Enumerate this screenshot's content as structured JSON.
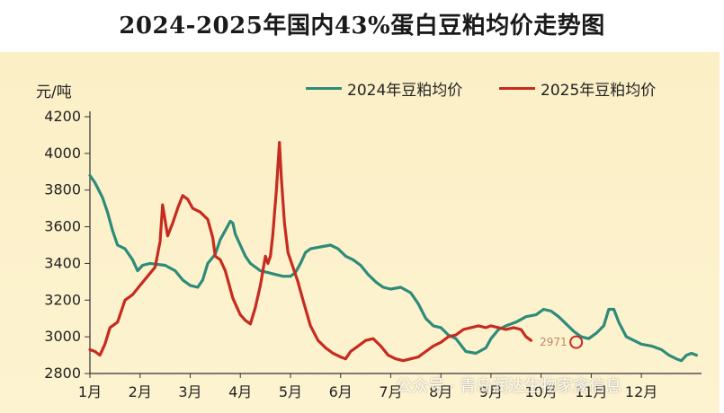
{
  "chart_data": {
    "type": "line",
    "title": "2024-2025年国内43%蛋白豆粕均价走势图",
    "ylabel": "元/吨",
    "ylim": [
      2800,
      4200
    ],
    "yticks": [
      2800,
      3000,
      3200,
      3400,
      3600,
      3800,
      4000,
      4200
    ],
    "xticks": [
      "1月",
      "2月",
      "3月",
      "4月",
      "5月",
      "6月",
      "7月",
      "8月",
      "9月",
      "10月",
      "11月",
      "12月"
    ],
    "grid": false,
    "legend": "top-right",
    "colors": {
      "s2024": "#2e8b7a",
      "s2025": "#c62b1f"
    },
    "annotation": {
      "text": "2971",
      "month": 10.7,
      "value": 2971
    },
    "series": [
      {
        "name": "2024年豆粕均价",
        "points": [
          [
            1.0,
            3880
          ],
          [
            1.1,
            3840
          ],
          [
            1.25,
            3760
          ],
          [
            1.35,
            3680
          ],
          [
            1.45,
            3580
          ],
          [
            1.55,
            3500
          ],
          [
            1.7,
            3480
          ],
          [
            1.85,
            3420
          ],
          [
            1.95,
            3360
          ],
          [
            2.05,
            3390
          ],
          [
            2.2,
            3400
          ],
          [
            2.5,
            3390
          ],
          [
            2.7,
            3360
          ],
          [
            2.85,
            3310
          ],
          [
            3.0,
            3280
          ],
          [
            3.15,
            3270
          ],
          [
            3.25,
            3310
          ],
          [
            3.35,
            3400
          ],
          [
            3.5,
            3450
          ],
          [
            3.6,
            3530
          ],
          [
            3.7,
            3580
          ],
          [
            3.8,
            3630
          ],
          [
            3.85,
            3620
          ],
          [
            3.9,
            3560
          ],
          [
            4.0,
            3500
          ],
          [
            4.1,
            3440
          ],
          [
            4.2,
            3400
          ],
          [
            4.4,
            3360
          ],
          [
            4.55,
            3350
          ],
          [
            4.7,
            3340
          ],
          [
            4.85,
            3330
          ],
          [
            5.0,
            3330
          ],
          [
            5.1,
            3350
          ],
          [
            5.2,
            3400
          ],
          [
            5.3,
            3460
          ],
          [
            5.4,
            3480
          ],
          [
            5.6,
            3490
          ],
          [
            5.8,
            3500
          ],
          [
            5.95,
            3480
          ],
          [
            6.1,
            3440
          ],
          [
            6.25,
            3420
          ],
          [
            6.4,
            3390
          ],
          [
            6.55,
            3340
          ],
          [
            6.7,
            3300
          ],
          [
            6.85,
            3270
          ],
          [
            7.0,
            3260
          ],
          [
            7.2,
            3270
          ],
          [
            7.4,
            3240
          ],
          [
            7.55,
            3180
          ],
          [
            7.7,
            3100
          ],
          [
            7.85,
            3060
          ],
          [
            8.0,
            3050
          ],
          [
            8.15,
            3010
          ],
          [
            8.3,
            2990
          ],
          [
            8.5,
            2920
          ],
          [
            8.7,
            2910
          ],
          [
            8.9,
            2940
          ],
          [
            9.0,
            2990
          ],
          [
            9.15,
            3040
          ],
          [
            9.3,
            3060
          ],
          [
            9.5,
            3080
          ],
          [
            9.7,
            3110
          ],
          [
            9.9,
            3120
          ],
          [
            10.05,
            3150
          ],
          [
            10.2,
            3140
          ],
          [
            10.35,
            3110
          ],
          [
            10.5,
            3070
          ],
          [
            10.65,
            3030
          ],
          [
            10.8,
            3000
          ],
          [
            10.95,
            2990
          ],
          [
            11.1,
            3020
          ],
          [
            11.25,
            3060
          ],
          [
            11.35,
            3150
          ],
          [
            11.45,
            3150
          ],
          [
            11.55,
            3080
          ],
          [
            11.7,
            3000
          ],
          [
            11.85,
            2980
          ],
          [
            12.0,
            2960
          ],
          [
            12.2,
            2950
          ],
          [
            12.4,
            2930
          ],
          [
            12.55,
            2900
          ],
          [
            12.7,
            2880
          ],
          [
            12.8,
            2870
          ],
          [
            12.9,
            2900
          ],
          [
            13.0,
            2910
          ],
          [
            13.1,
            2900
          ]
        ]
      },
      {
        "name": "2025年豆粕均价",
        "points": [
          [
            1.0,
            2930
          ],
          [
            1.1,
            2920
          ],
          [
            1.2,
            2900
          ],
          [
            1.3,
            2960
          ],
          [
            1.4,
            3050
          ],
          [
            1.55,
            3080
          ],
          [
            1.7,
            3200
          ],
          [
            1.85,
            3230
          ],
          [
            2.0,
            3280
          ],
          [
            2.15,
            3330
          ],
          [
            2.3,
            3380
          ],
          [
            2.4,
            3520
          ],
          [
            2.45,
            3720
          ],
          [
            2.55,
            3550
          ],
          [
            2.65,
            3620
          ],
          [
            2.75,
            3700
          ],
          [
            2.85,
            3770
          ],
          [
            2.95,
            3750
          ],
          [
            3.05,
            3700
          ],
          [
            3.2,
            3680
          ],
          [
            3.35,
            3640
          ],
          [
            3.45,
            3540
          ],
          [
            3.5,
            3440
          ],
          [
            3.6,
            3420
          ],
          [
            3.7,
            3360
          ],
          [
            3.85,
            3210
          ],
          [
            4.0,
            3120
          ],
          [
            4.1,
            3090
          ],
          [
            4.2,
            3070
          ],
          [
            4.3,
            3160
          ],
          [
            4.4,
            3280
          ],
          [
            4.5,
            3440
          ],
          [
            4.55,
            3400
          ],
          [
            4.6,
            3440
          ],
          [
            4.65,
            3560
          ],
          [
            4.72,
            3800
          ],
          [
            4.78,
            4060
          ],
          [
            4.82,
            3860
          ],
          [
            4.88,
            3620
          ],
          [
            4.95,
            3460
          ],
          [
            5.05,
            3380
          ],
          [
            5.15,
            3300
          ],
          [
            5.25,
            3200
          ],
          [
            5.4,
            3060
          ],
          [
            5.55,
            2980
          ],
          [
            5.7,
            2940
          ],
          [
            5.85,
            2910
          ],
          [
            6.0,
            2890
          ],
          [
            6.1,
            2880
          ],
          [
            6.2,
            2920
          ],
          [
            6.35,
            2950
          ],
          [
            6.5,
            2980
          ],
          [
            6.65,
            2990
          ],
          [
            6.8,
            2950
          ],
          [
            6.95,
            2900
          ],
          [
            7.1,
            2880
          ],
          [
            7.25,
            2870
          ],
          [
            7.4,
            2880
          ],
          [
            7.55,
            2890
          ],
          [
            7.7,
            2920
          ],
          [
            7.85,
            2950
          ],
          [
            8.0,
            2970
          ],
          [
            8.15,
            3000
          ],
          [
            8.3,
            3010
          ],
          [
            8.45,
            3040
          ],
          [
            8.6,
            3050
          ],
          [
            8.75,
            3060
          ],
          [
            8.9,
            3050
          ],
          [
            9.0,
            3060
          ],
          [
            9.15,
            3050
          ],
          [
            9.3,
            3040
          ],
          [
            9.45,
            3050
          ],
          [
            9.6,
            3040
          ],
          [
            9.7,
            3000
          ],
          [
            9.8,
            2980
          ]
        ]
      }
    ]
  }
}
